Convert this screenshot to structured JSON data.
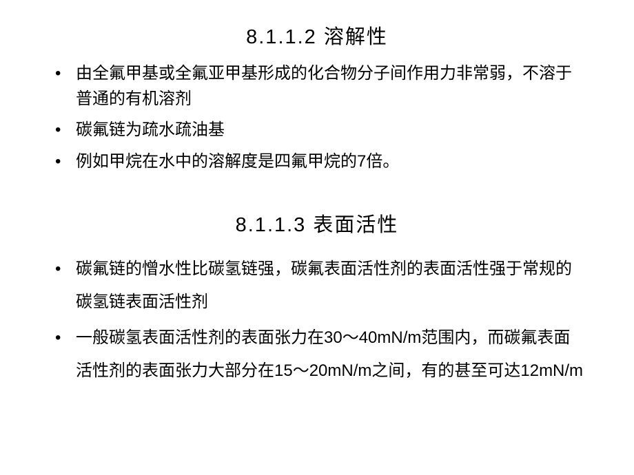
{
  "section1": {
    "heading": "8.1.1.2 溶解性",
    "items": [
      "由全氟甲基或全氟亚甲基形成的化合物分子间作用力非常弱，不溶于普通的有机溶剂",
      "碳氟链为疏水疏油基",
      "例如甲烷在水中的溶解度是四氟甲烷的7倍。"
    ]
  },
  "section2": {
    "heading": "8.1.1.3 表面活性",
    "items": [
      "碳氟链的憎水性比碳氢链强，碳氟表面活性剂的表面活性强于常规的碳氢链表面活性剂",
      "一般碳氢表面活性剂的表面张力在30～40mN/m范围内，而碳氟表面活性剂的表面张力大部分在15～20mN/m之间，有的甚至可达12mN/m"
    ]
  }
}
